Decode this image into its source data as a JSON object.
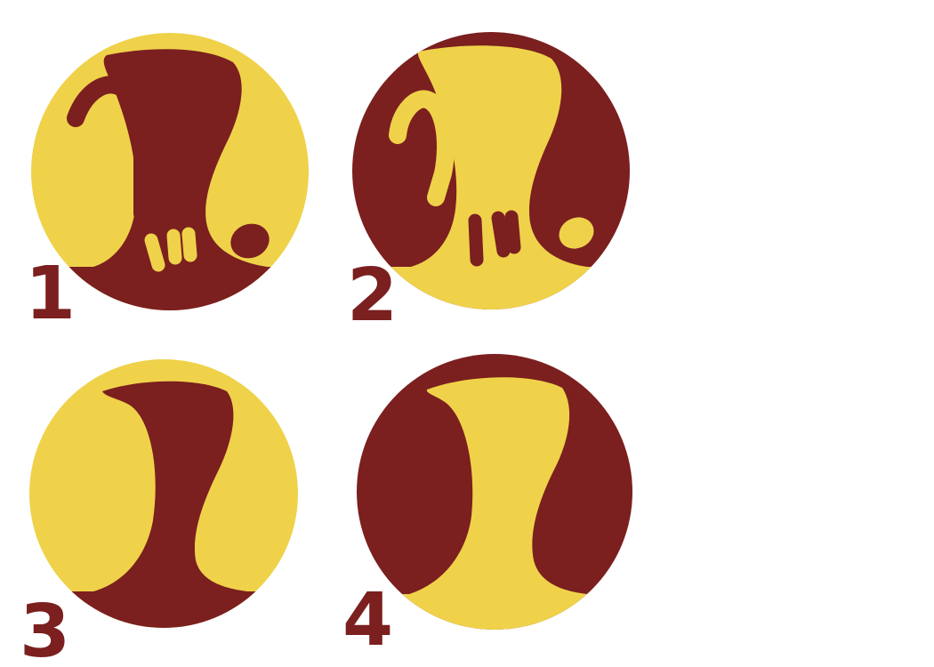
{
  "colors": {
    "yellow": "#efd24a",
    "maroon": "#7b1f1f",
    "background": "#ffffff"
  },
  "variants": [
    {
      "label": "1",
      "style": "maroon-on-yellow",
      "details": "with-ear-and-toes"
    },
    {
      "label": "2",
      "style": "yellow-on-maroon",
      "details": "with-ear-and-toes"
    },
    {
      "label": "3",
      "style": "maroon-on-yellow",
      "details": "plain"
    },
    {
      "label": "4",
      "style": "yellow-on-maroon",
      "details": "plain"
    }
  ]
}
